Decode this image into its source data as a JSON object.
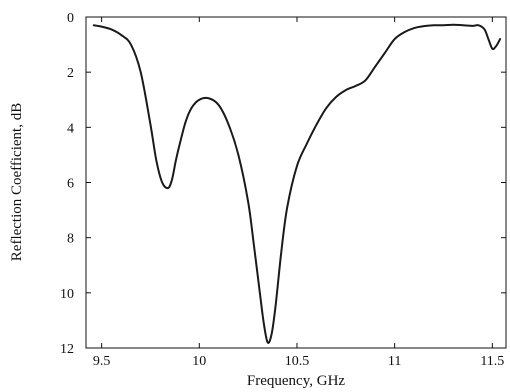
{
  "chart_data": {
    "type": "line",
    "title": "",
    "xlabel": "Frequency, GHz",
    "ylabel": "Reflection Coefficient, dB",
    "xlim": [
      9.42,
      11.57
    ],
    "ylim": [
      0,
      12
    ],
    "y_inverted": true,
    "x_ticks": [
      9.5,
      10,
      10.5,
      11,
      11.5
    ],
    "x_tick_labels": [
      "9.5",
      "10",
      "10.5",
      "11",
      "11.5"
    ],
    "y_ticks": [
      0,
      2,
      4,
      6,
      8,
      10,
      12
    ],
    "y_tick_labels": [
      "0",
      "2",
      "4",
      "6",
      "8",
      "10",
      "12"
    ],
    "grid": false,
    "legend": "none",
    "line_color": "#1a1a1a",
    "series": [
      {
        "x": [
          9.46,
          9.5,
          9.55,
          9.6,
          9.65,
          9.7,
          9.75,
          9.78,
          9.81,
          9.84,
          9.86,
          9.88,
          9.9,
          9.93,
          9.96,
          10.0,
          10.05,
          10.1,
          10.15,
          10.2,
          10.25,
          10.28,
          10.31,
          10.33,
          10.35,
          10.37,
          10.39,
          10.42,
          10.45,
          10.5,
          10.55,
          10.6,
          10.65,
          10.7,
          10.75,
          10.8,
          10.85,
          10.9,
          10.95,
          11.0,
          11.05,
          11.1,
          11.15,
          11.2,
          11.25,
          11.3,
          11.35,
          11.4,
          11.43,
          11.46,
          11.48,
          11.5,
          11.52,
          11.54
        ],
        "y": [
          0.3,
          0.35,
          0.45,
          0.65,
          1.0,
          2.0,
          3.9,
          5.2,
          6.0,
          6.2,
          5.9,
          5.2,
          4.6,
          3.8,
          3.3,
          3.0,
          2.95,
          3.2,
          3.9,
          5.0,
          6.7,
          8.3,
          10.0,
          11.1,
          11.8,
          11.5,
          10.5,
          8.5,
          6.9,
          5.4,
          4.6,
          3.9,
          3.3,
          2.9,
          2.65,
          2.5,
          2.3,
          1.8,
          1.3,
          0.8,
          0.55,
          0.4,
          0.33,
          0.3,
          0.3,
          0.28,
          0.3,
          0.32,
          0.3,
          0.45,
          0.8,
          1.15,
          1.05,
          0.8
        ]
      }
    ]
  }
}
